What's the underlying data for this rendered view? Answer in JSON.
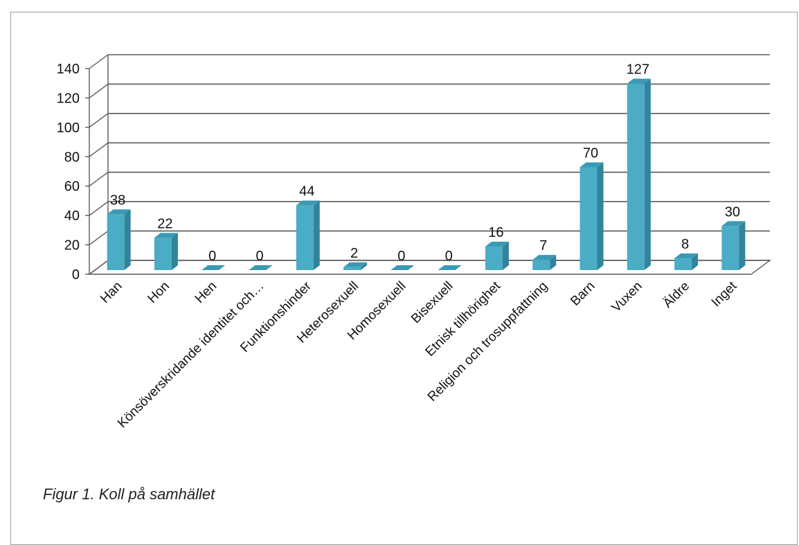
{
  "chart_data": {
    "type": "bar",
    "categories": [
      "Han",
      "Hon",
      "Hen",
      "Könsöverskridande identitet och…",
      "Funktionshinder",
      "Heterosexuell",
      "Homosexuell",
      "Bisexuell",
      "Etnisk tillhörighet",
      "Religion och trosuppfattning",
      "Barn",
      "Vuxen",
      "Äldre",
      "Inget"
    ],
    "values": [
      38,
      22,
      0,
      0,
      44,
      2,
      0,
      0,
      16,
      7,
      70,
      127,
      8,
      30
    ],
    "ylim": [
      0,
      140
    ],
    "yticks": [
      0,
      20,
      40,
      60,
      80,
      100,
      120,
      140
    ],
    "grid": true,
    "style": "3d-column",
    "colors": {
      "front": "#4bacc6",
      "side": "#31849b",
      "top": "#3a9ab4",
      "grid": "#595959"
    }
  },
  "caption": "Figur 1. Koll på samhället"
}
